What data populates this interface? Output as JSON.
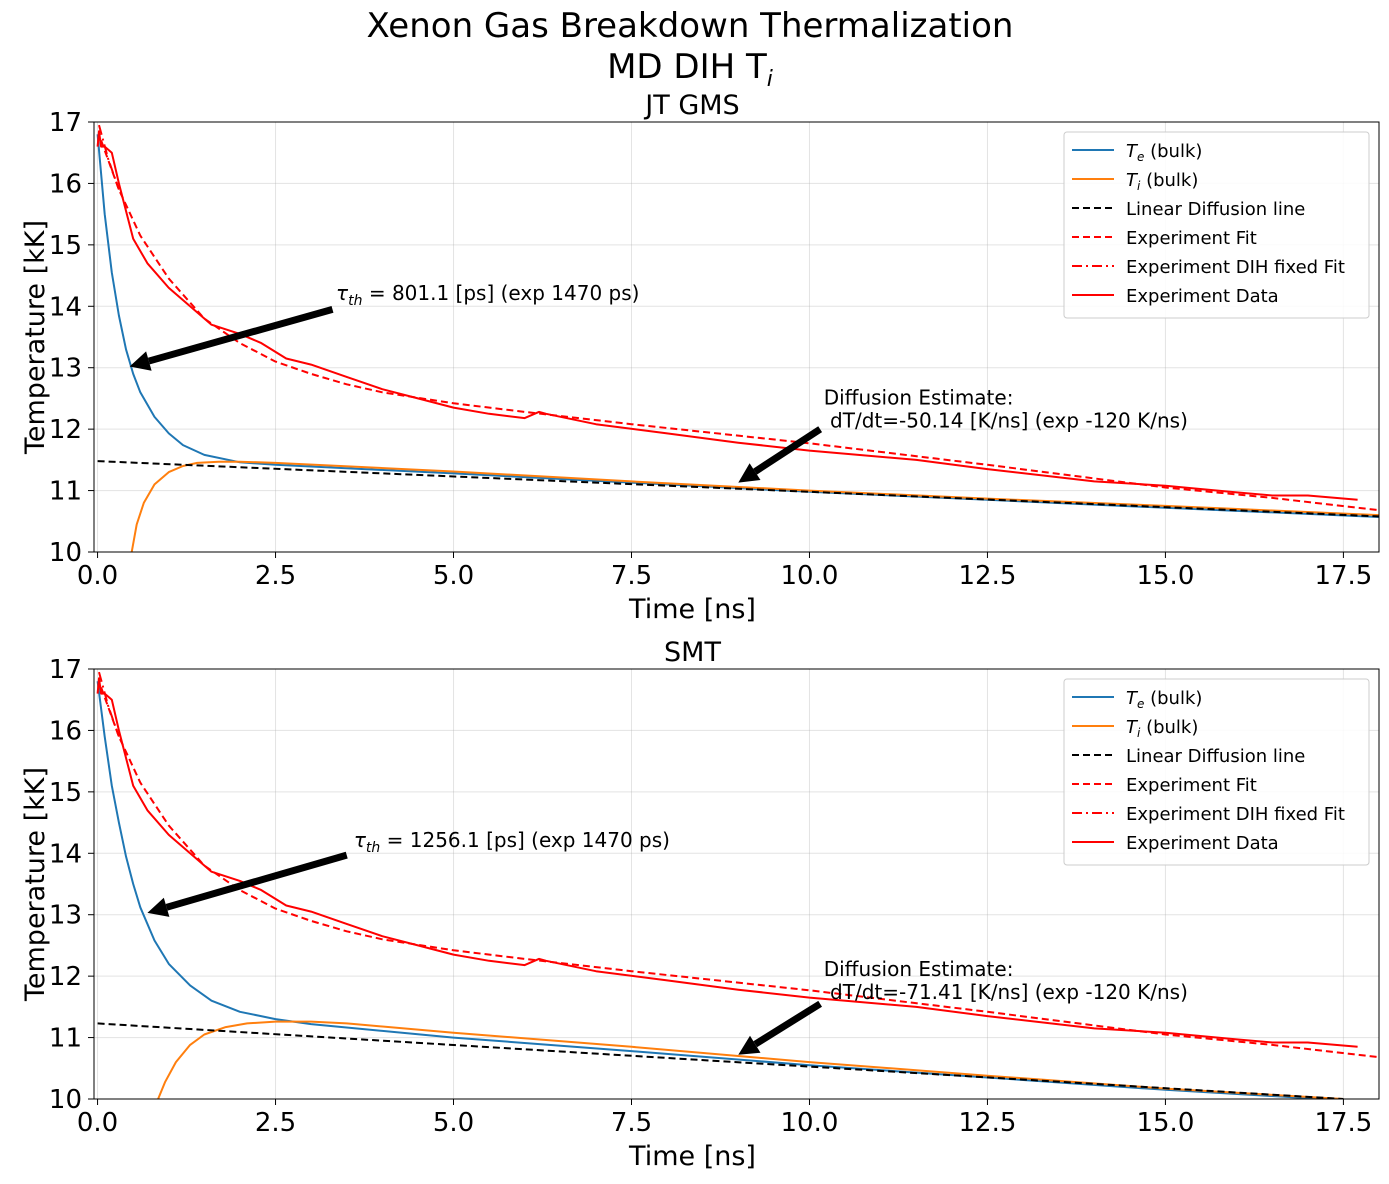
{
  "figure": {
    "suptitle_line1": "Xenon Gas Breakdown Thermalization",
    "suptitle_line2": "MD DIH T",
    "suptitle_sub": "i"
  },
  "chart_data": [
    {
      "type": "line",
      "title": "JT GMS",
      "xlabel": "Time [ns]",
      "ylabel": "Temperature [kK]",
      "xlim": [
        -0.05,
        18.0
      ],
      "ylim": [
        10,
        17
      ],
      "x_ticks": [
        "0.0",
        "2.5",
        "5.0",
        "7.5",
        "10.0",
        "12.5",
        "15.0",
        "17.5"
      ],
      "y_ticks": [
        "10",
        "11",
        "12",
        "13",
        "14",
        "15",
        "16",
        "17"
      ],
      "grid": true,
      "legend_position": "top-right",
      "legend": [
        {
          "symbol": "T",
          "sub": "e",
          "text": " (bulk)",
          "color": "#1f77b4",
          "style": "solid"
        },
        {
          "symbol": "T",
          "sub": "i",
          "text": " (bulk)",
          "color": "#ff7f0e",
          "style": "solid"
        },
        {
          "text": "Linear Diffusion line",
          "color": "#000000",
          "style": "dashed"
        },
        {
          "text": "Experiment Fit",
          "color": "#ff0000",
          "style": "dashed"
        },
        {
          "text": "Experiment DIH fixed Fit",
          "color": "#ff0000",
          "style": "dashdot"
        },
        {
          "text": "Experiment Data",
          "color": "#ff0000",
          "style": "solid"
        }
      ],
      "annotations": [
        {
          "label_symbol": "τ",
          "label_sub": "th",
          "label_rest": " = 801.1 [ps] (exp 1470 ps)",
          "text_x": 3.35,
          "text_y": 14.1,
          "arrow_tail": [
            3.3,
            13.95
          ],
          "arrow_head": [
            0.45,
            13.02
          ]
        },
        {
          "line1": "Diffusion Estimate:",
          "line2": " dT/dt=-50.14 [K/ns] (exp -120 K/ns)",
          "text_x": 10.2,
          "text_y": 12.4,
          "arrow_tail": [
            10.15,
            12.0
          ],
          "arrow_head": [
            9.0,
            11.13
          ]
        }
      ],
      "series": [
        {
          "name": "T_e (bulk)",
          "color": "#1f77b4",
          "style": "solid",
          "x": [
            0,
            0.1,
            0.2,
            0.3,
            0.4,
            0.5,
            0.6,
            0.8,
            1.0,
            1.2,
            1.5,
            2.0,
            2.5,
            5.0,
            7.5,
            10.0,
            12.5,
            15.0,
            18.0
          ],
          "y": [
            16.8,
            15.5,
            14.55,
            13.85,
            13.3,
            12.9,
            12.6,
            12.2,
            11.93,
            11.74,
            11.58,
            11.46,
            11.42,
            11.28,
            11.13,
            10.98,
            10.85,
            10.72,
            10.57
          ]
        },
        {
          "name": "T_i (bulk)",
          "color": "#ff7f0e",
          "style": "solid",
          "x": [
            0.48,
            0.55,
            0.65,
            0.8,
            1.0,
            1.2,
            1.4,
            1.7,
            2.0,
            2.5,
            5.0,
            7.5,
            10.0,
            12.5,
            15.0,
            18.0
          ],
          "y": [
            10.0,
            10.45,
            10.8,
            11.1,
            11.3,
            11.4,
            11.45,
            11.47,
            11.47,
            11.45,
            11.31,
            11.15,
            11.0,
            10.87,
            10.75,
            10.6
          ]
        },
        {
          "name": "Linear Diffusion line",
          "color": "#000000",
          "style": "dashed",
          "x": [
            0,
            18.0
          ],
          "y": [
            11.48,
            10.58
          ]
        },
        {
          "name": "Experiment Fit",
          "color": "#ff0000",
          "style": "dashed",
          "x": [
            0.05,
            0.3,
            0.6,
            1.0,
            1.5,
            2.0,
            2.5,
            3.0,
            3.5,
            4.0,
            5.0,
            6.0,
            7.5,
            10.0,
            12.5,
            15.0,
            16.5,
            18.0
          ],
          "y": [
            16.7,
            15.9,
            15.15,
            14.45,
            13.8,
            13.4,
            13.1,
            12.9,
            12.73,
            12.6,
            12.42,
            12.28,
            12.08,
            11.77,
            11.42,
            11.05,
            10.88,
            10.68
          ]
        },
        {
          "name": "Experiment DIH fixed Fit",
          "color": "#ff0000",
          "style": "dashdot",
          "x": [
            0.02,
            0.15,
            0.3
          ],
          "y": [
            16.95,
            16.4,
            15.9
          ]
        },
        {
          "name": "Experiment Data",
          "color": "#ff0000",
          "style": "solid",
          "x": [
            0.0,
            0.02,
            0.05,
            0.1,
            0.15,
            0.2,
            0.3,
            0.5,
            0.7,
            1.0,
            1.3,
            1.6,
            2.0,
            2.3,
            2.65,
            3.0,
            3.5,
            4.0,
            4.5,
            5.0,
            5.5,
            6.0,
            6.2,
            6.3,
            7.0,
            8.0,
            9.0,
            10.0,
            11.5,
            12.5,
            14.0,
            15.0,
            16.0,
            16.5,
            17.0,
            17.7
          ],
          "y": [
            16.6,
            16.85,
            16.6,
            16.6,
            16.55,
            16.5,
            16.0,
            15.1,
            14.7,
            14.3,
            14.0,
            13.7,
            13.55,
            13.4,
            13.15,
            13.05,
            12.85,
            12.65,
            12.5,
            12.35,
            12.25,
            12.18,
            12.28,
            12.25,
            12.08,
            11.93,
            11.78,
            11.65,
            11.5,
            11.35,
            11.15,
            11.08,
            10.97,
            10.92,
            10.92,
            10.85
          ]
        }
      ]
    },
    {
      "type": "line",
      "title": "SMT",
      "xlabel": "Time [ns]",
      "ylabel": "Temperature [kK]",
      "xlim": [
        -0.05,
        18.0
      ],
      "ylim": [
        10,
        17
      ],
      "x_ticks": [
        "0.0",
        "2.5",
        "5.0",
        "7.5",
        "10.0",
        "12.5",
        "15.0",
        "17.5"
      ],
      "y_ticks": [
        "10",
        "11",
        "12",
        "13",
        "14",
        "15",
        "16",
        "17"
      ],
      "grid": true,
      "legend_position": "top-right",
      "legend": [
        {
          "symbol": "T",
          "sub": "e",
          "text": " (bulk)",
          "color": "#1f77b4",
          "style": "solid"
        },
        {
          "symbol": "T",
          "sub": "i",
          "text": " (bulk)",
          "color": "#ff7f0e",
          "style": "solid"
        },
        {
          "text": "Linear Diffusion line",
          "color": "#000000",
          "style": "dashed"
        },
        {
          "text": "Experiment Fit",
          "color": "#ff0000",
          "style": "dashed"
        },
        {
          "text": "Experiment DIH fixed Fit",
          "color": "#ff0000",
          "style": "dashdot"
        },
        {
          "text": "Experiment Data",
          "color": "#ff0000",
          "style": "solid"
        }
      ],
      "annotations": [
        {
          "label_symbol": "τ",
          "label_sub": "th",
          "label_rest": " = 1256.1 [ps] (exp 1470 ps)",
          "text_x": 3.6,
          "text_y": 14.1,
          "arrow_tail": [
            3.5,
            13.97
          ],
          "arrow_head": [
            0.7,
            13.03
          ]
        },
        {
          "line1": "Diffusion Estimate:",
          "line2": " dT/dt=-71.41 [K/ns] (exp -120 K/ns)",
          "text_x": 10.2,
          "text_y": 12.0,
          "arrow_tail": [
            10.15,
            11.55
          ],
          "arrow_head": [
            9.0,
            10.72
          ]
        }
      ],
      "series": [
        {
          "name": "T_e (bulk)",
          "color": "#1f77b4",
          "style": "solid",
          "x": [
            0,
            0.1,
            0.2,
            0.3,
            0.4,
            0.5,
            0.6,
            0.8,
            1.0,
            1.3,
            1.6,
            2.0,
            2.5,
            3.0,
            5.0,
            7.5,
            10.0,
            12.5,
            15.0,
            17.5
          ],
          "y": [
            16.8,
            15.9,
            15.1,
            14.5,
            13.95,
            13.5,
            13.12,
            12.58,
            12.2,
            11.85,
            11.6,
            11.42,
            11.3,
            11.22,
            11.0,
            10.78,
            10.55,
            10.35,
            10.15,
            9.98
          ]
        },
        {
          "name": "T_i (bulk)",
          "color": "#ff7f0e",
          "style": "solid",
          "x": [
            0.85,
            0.95,
            1.1,
            1.3,
            1.5,
            1.8,
            2.1,
            2.5,
            3.0,
            3.5,
            5.0,
            7.5,
            10.0,
            12.5,
            15.0,
            17.5
          ],
          "y": [
            10.0,
            10.28,
            10.6,
            10.88,
            11.05,
            11.17,
            11.23,
            11.26,
            11.26,
            11.23,
            11.08,
            10.85,
            10.6,
            10.38,
            10.17,
            10.0
          ]
        },
        {
          "name": "Linear Diffusion line",
          "color": "#000000",
          "style": "dashed",
          "x": [
            0,
            17.5
          ],
          "y": [
            11.23,
            10.0
          ]
        },
        {
          "name": "Experiment Fit",
          "color": "#ff0000",
          "style": "dashed",
          "x": [
            0.05,
            0.3,
            0.6,
            1.0,
            1.5,
            2.0,
            2.5,
            3.0,
            3.5,
            4.0,
            5.0,
            6.0,
            7.5,
            10.0,
            12.5,
            15.0,
            16.5,
            18.0
          ],
          "y": [
            16.7,
            15.9,
            15.15,
            14.45,
            13.8,
            13.4,
            13.1,
            12.9,
            12.73,
            12.6,
            12.42,
            12.28,
            12.08,
            11.77,
            11.42,
            11.05,
            10.88,
            10.68
          ]
        },
        {
          "name": "Experiment DIH fixed Fit",
          "color": "#ff0000",
          "style": "dashdot",
          "x": [
            0.02,
            0.15,
            0.3
          ],
          "y": [
            16.95,
            16.4,
            15.9
          ]
        },
        {
          "name": "Experiment Data",
          "color": "#ff0000",
          "style": "solid",
          "x": [
            0.0,
            0.02,
            0.05,
            0.1,
            0.15,
            0.2,
            0.3,
            0.5,
            0.7,
            1.0,
            1.3,
            1.6,
            2.0,
            2.3,
            2.65,
            3.0,
            3.5,
            4.0,
            4.5,
            5.0,
            5.5,
            6.0,
            6.2,
            6.3,
            7.0,
            8.0,
            9.0,
            10.0,
            11.5,
            12.5,
            14.0,
            15.0,
            16.0,
            16.5,
            17.0,
            17.7
          ],
          "y": [
            16.6,
            16.85,
            16.6,
            16.6,
            16.55,
            16.5,
            16.0,
            15.1,
            14.7,
            14.3,
            14.0,
            13.7,
            13.55,
            13.4,
            13.15,
            13.05,
            12.85,
            12.65,
            12.5,
            12.35,
            12.25,
            12.18,
            12.28,
            12.25,
            12.08,
            11.93,
            11.78,
            11.65,
            11.5,
            11.35,
            11.15,
            11.08,
            10.97,
            10.92,
            10.92,
            10.85
          ]
        }
      ]
    }
  ]
}
